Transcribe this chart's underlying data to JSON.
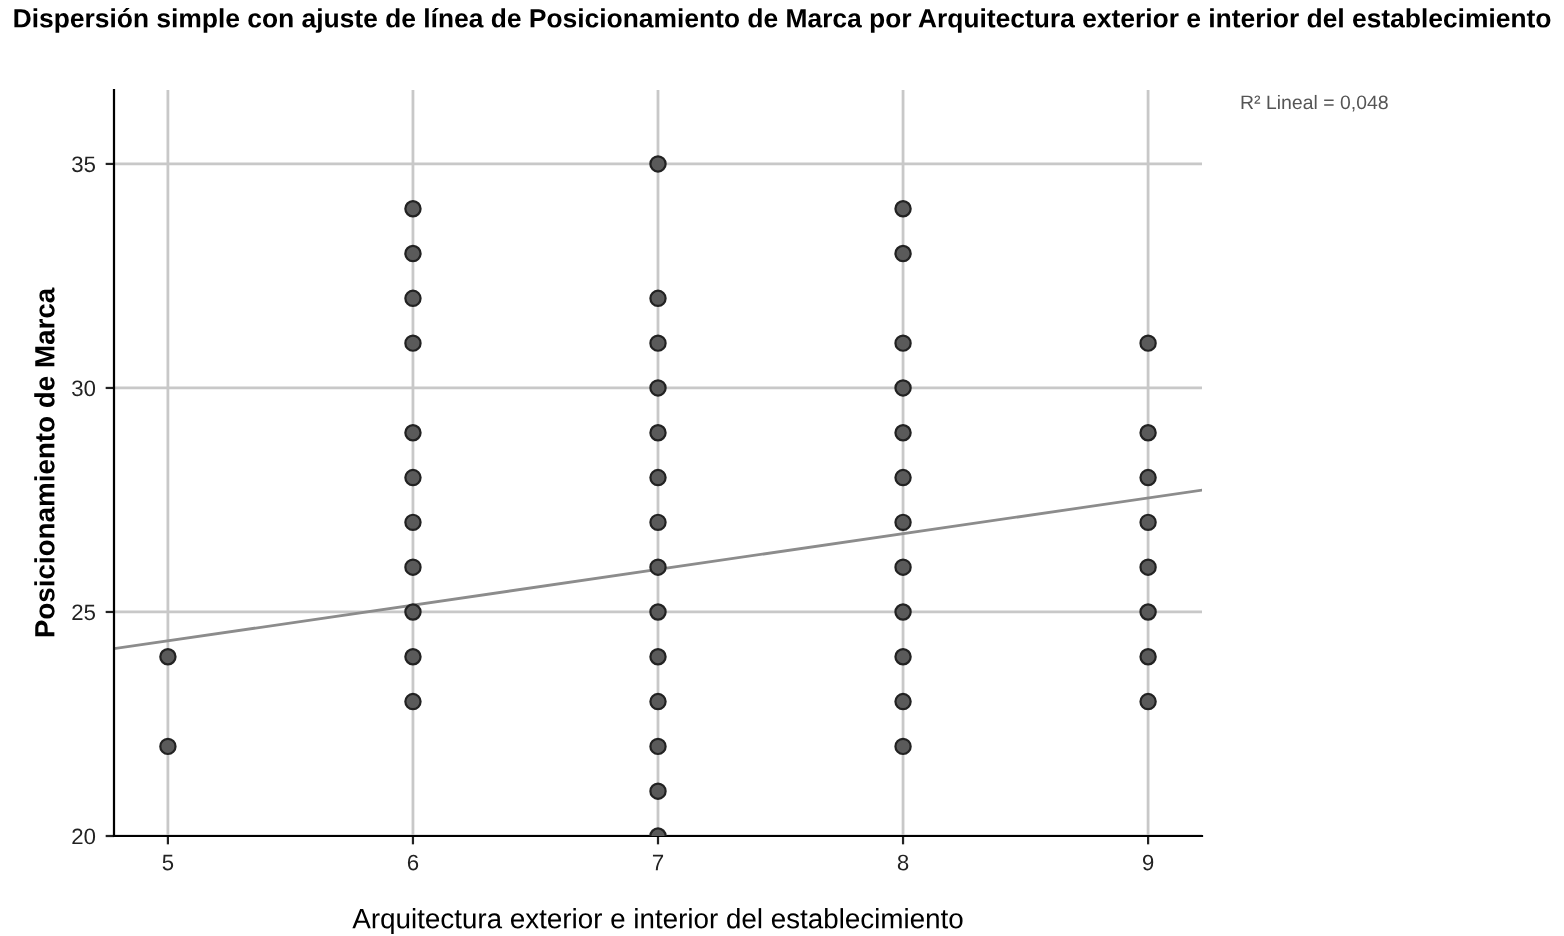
{
  "chart_data": {
    "type": "scatter",
    "title": "Dispersión simple con ajuste de línea de Posicionamiento de Marca por Arquitectura exterior e interior del establecimiento",
    "xlabel": "Arquitectura exterior e interior del establecimiento",
    "ylabel": "Posicionamiento de Marca",
    "annotations": [
      "R² Lineal = 0,048"
    ],
    "series": [
      {
        "color": "#5a5a5a",
        "marker": "circle",
        "x": [
          5,
          5,
          6,
          6,
          6,
          6,
          6,
          6,
          6,
          6,
          6,
          6,
          6,
          7,
          7,
          7,
          7,
          7,
          7,
          7,
          7,
          7,
          7,
          7,
          7,
          7,
          7,
          8,
          8,
          8,
          8,
          8,
          8,
          8,
          8,
          8,
          8,
          8,
          8,
          9,
          9,
          9,
          9,
          9,
          9,
          9,
          9
        ],
        "values": [
          24,
          22,
          34,
          33,
          32,
          31,
          29,
          28,
          27,
          26,
          25,
          24,
          23,
          35,
          32,
          31,
          30,
          29,
          28,
          27,
          26,
          25,
          24,
          23,
          22,
          21,
          20,
          34,
          33,
          31,
          30,
          29,
          28,
          27,
          26,
          25,
          24,
          23,
          22,
          31,
          29,
          28,
          27,
          26,
          25,
          24,
          23
        ]
      },
      {
        "type": "line",
        "color": "#8c8c8c",
        "marker": "none",
        "line_style": "solid",
        "x": [
          4.78,
          9.22
        ],
        "values": [
          24.18,
          27.72
        ]
      }
    ],
    "xlim": [
      4.78,
      9.22
    ],
    "ylim": [
      20,
      36.65
    ],
    "xticks": [
      5,
      6,
      7,
      8,
      9
    ],
    "yticks": [
      20,
      25,
      30,
      35
    ],
    "grid": true,
    "legend": false
  }
}
